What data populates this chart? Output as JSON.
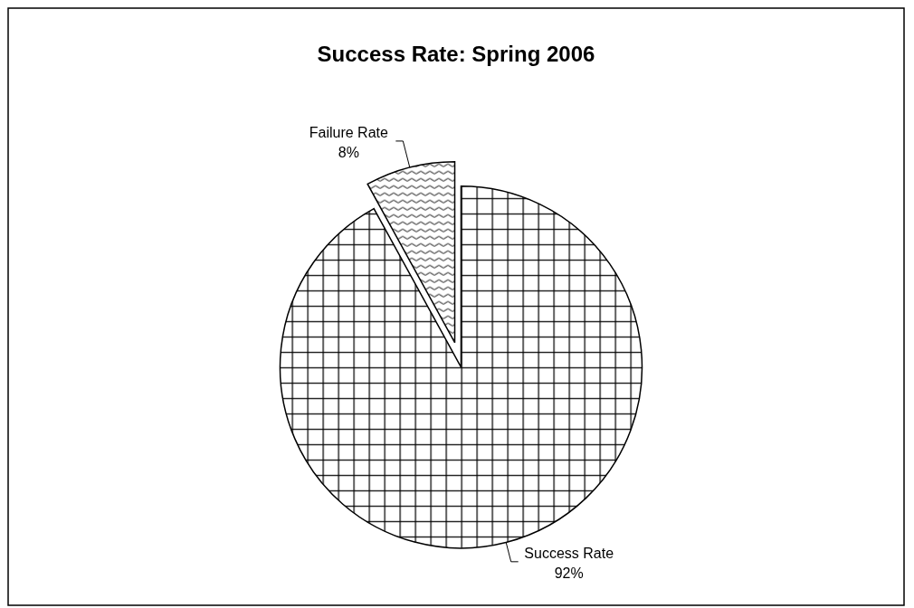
{
  "chart_data": {
    "type": "pie",
    "title": "Success Rate: Spring 2006",
    "categories": [
      "Success Rate",
      "Failure Rate"
    ],
    "values": [
      92,
      8
    ],
    "value_labels": [
      "92%",
      "8%"
    ],
    "colors": [
      "#ffffff",
      "#ffffff"
    ],
    "legend": false
  }
}
